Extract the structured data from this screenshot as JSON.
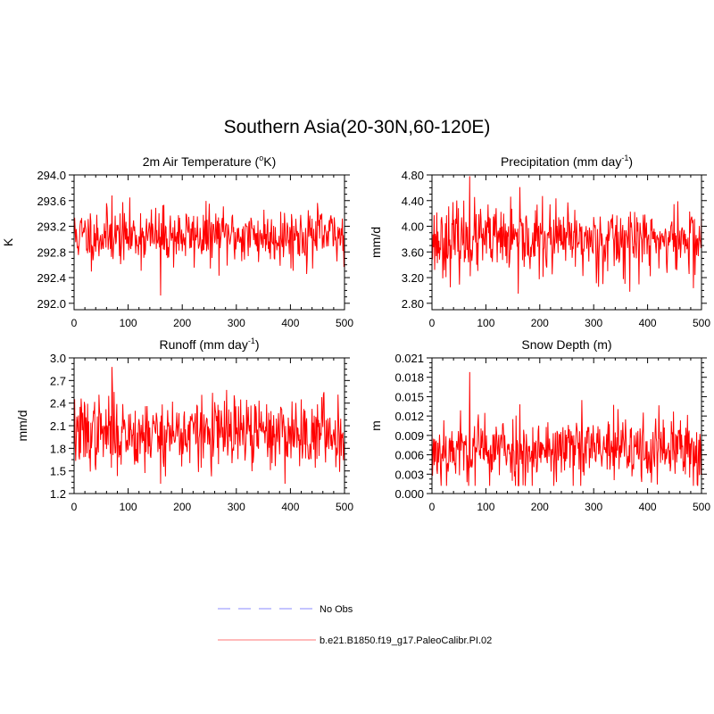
{
  "title": "Southern Asia(20-30N,60-120E)",
  "colors": {
    "model": "#ff0000",
    "obs": "#a0a0ff",
    "legend_model": "#ff9090",
    "frame": "#000000"
  },
  "legend": [
    {
      "label": "No Obs",
      "style": "dashed",
      "color": "#a0a0ff"
    },
    {
      "label": "b.e21.B1850.f19_g17.PaleoCalibr.PI.02",
      "style": "solid",
      "color": "#ff9090"
    }
  ],
  "chart_data": [
    {
      "type": "line",
      "title": "2m Air Temperature (",
      "title_sup": "o",
      "title_after": "K)",
      "ylabel": "K",
      "xlim": [
        0,
        500
      ],
      "ylim": [
        291.9,
        294.0
      ],
      "xticks": [
        "0",
        "100",
        "200",
        "300",
        "400",
        "500"
      ],
      "yticks": [
        "292.0",
        "292.4",
        "292.8",
        "293.2",
        "293.6",
        "294.0"
      ],
      "series": [
        {
          "name": "b.e21.B1850.f19_g17.PaleoCalibr.PI.02",
          "mean": 293.05,
          "sd": 0.22,
          "min": 292.12,
          "max": 293.68,
          "n": 501,
          "seed": 11
        }
      ]
    },
    {
      "type": "line",
      "title": "Precipitation (mm day",
      "title_sup": "-1",
      "title_after": ")",
      "ylabel": "mm/d",
      "xlim": [
        0,
        500
      ],
      "ylim": [
        2.7,
        4.8
      ],
      "xticks": [
        "0",
        "100",
        "200",
        "300",
        "400",
        "500"
      ],
      "yticks": [
        "2.80",
        "3.20",
        "3.60",
        "4.00",
        "4.40",
        "4.80"
      ],
      "series": [
        {
          "name": "b.e21.B1850.f19_g17.PaleoCalibr.PI.02",
          "mean": 3.78,
          "sd": 0.27,
          "min": 2.95,
          "max": 4.78,
          "n": 501,
          "seed": 23
        }
      ]
    },
    {
      "type": "line",
      "title": "Runoff (mm day",
      "title_sup": "-1",
      "title_after": ")",
      "ylabel": "mm/d",
      "xlim": [
        0,
        500
      ],
      "ylim": [
        1.2,
        3.0
      ],
      "xticks": [
        "0",
        "100",
        "200",
        "300",
        "400",
        "500"
      ],
      "yticks": [
        "1.2",
        "1.5",
        "1.8",
        "2.1",
        "2.4",
        "2.7",
        "3.0"
      ],
      "series": [
        {
          "name": "b.e21.B1850.f19_g17.PaleoCalibr.PI.02",
          "mean": 2.0,
          "sd": 0.24,
          "min": 1.33,
          "max": 2.88,
          "n": 501,
          "seed": 37
        }
      ]
    },
    {
      "type": "line",
      "title": "Snow Depth (m)",
      "title_sup": "",
      "title_after": "",
      "ylabel": "m",
      "xlim": [
        0,
        500
      ],
      "ylim": [
        0.0,
        0.021
      ],
      "xticks": [
        "0",
        "100",
        "200",
        "300",
        "400",
        "500"
      ],
      "yticks": [
        "0.000",
        "0.003",
        "0.006",
        "0.009",
        "0.012",
        "0.015",
        "0.018",
        "0.021"
      ],
      "series": [
        {
          "name": "b.e21.B1850.f19_g17.PaleoCalibr.PI.02",
          "mean": 0.0068,
          "sd": 0.0028,
          "min": 0.0012,
          "max": 0.0188,
          "n": 501,
          "seed": 53
        }
      ]
    }
  ]
}
